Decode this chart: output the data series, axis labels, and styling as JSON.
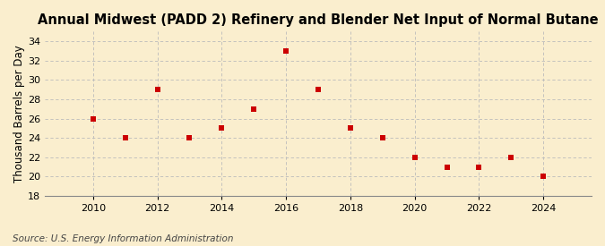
{
  "title": "Annual Midwest (PADD 2) Refinery and Blender Net Input of Normal Butane",
  "ylabel": "Thousand Barrels per Day",
  "source": "Source: U.S. Energy Information Administration",
  "years": [
    2010,
    2011,
    2012,
    2013,
    2014,
    2015,
    2016,
    2017,
    2018,
    2019,
    2020,
    2021,
    2022,
    2023,
    2024
  ],
  "values": [
    26.0,
    24.0,
    29.0,
    24.0,
    25.0,
    27.0,
    33.0,
    29.0,
    25.0,
    24.0,
    22.0,
    21.0,
    21.0,
    22.0,
    20.0
  ],
  "marker_color": "#cc0000",
  "marker": "s",
  "marker_size": 4,
  "ylim": [
    18,
    35
  ],
  "yticks": [
    18,
    20,
    22,
    24,
    26,
    28,
    30,
    32,
    34
  ],
  "xlim": [
    2008.5,
    2025.5
  ],
  "xticks": [
    2010,
    2012,
    2014,
    2016,
    2018,
    2020,
    2022,
    2024
  ],
  "background_color": "#faeece",
  "grid_color": "#bbbbbb",
  "title_fontsize": 10.5,
  "label_fontsize": 8.5,
  "tick_fontsize": 8,
  "source_fontsize": 7.5
}
